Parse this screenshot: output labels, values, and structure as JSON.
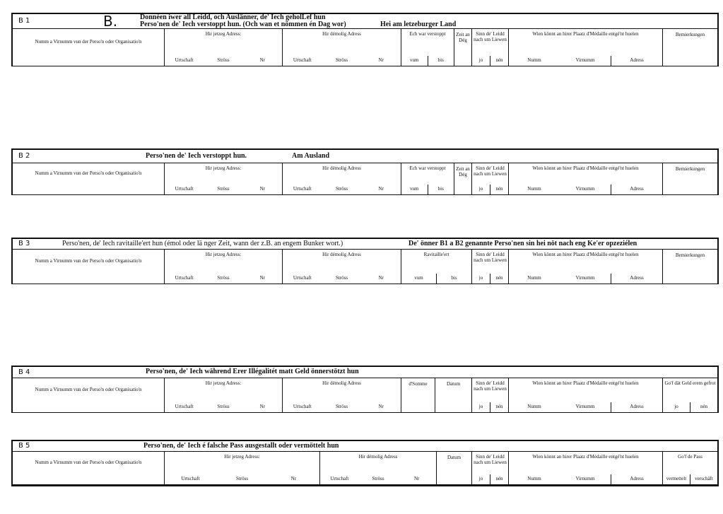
{
  "sections": [
    {
      "code": "B 1",
      "letter": "B.",
      "title": [
        "Donnéen iwer all Leidd, och Auslänner, de' Iech geholLef hun",
        "Perso'nen de' Iech verstoppt hun. (Och wan et nömmen én Dag wor)"
      ],
      "extra": "Hei am letzeburger Land",
      "columns": [
        {
          "label": "Numm a Virnumm vun der Perso'n oder Organisatio'n",
          "subs": []
        },
        {
          "label": "Hir jetzeg Adress:",
          "subs": [
            "Urtschaft",
            "Ströss",
            "Nr"
          ]
        },
        {
          "label": "Hir démolig Adress",
          "subs": [
            "Urtschaft",
            "Ströss",
            "Nr"
          ]
        },
        {
          "label": "Ech war verstoppt",
          "subs": [
            "vum",
            "bis"
          ]
        },
        {
          "label": "Zeit an Dég",
          "subs": []
        },
        {
          "label": "Sinn de' Leidd nach um Liewen",
          "subs": [
            "jo",
            "nén"
          ]
        },
        {
          "label": "Wien könnt an hirer Plaatz d'Médaille entgé'nt huelen",
          "subs": [
            "Numm",
            "Virnumm",
            "Adress"
          ]
        },
        {
          "label": "Bemierkungen",
          "subs": []
        }
      ]
    },
    {
      "code": "B 2",
      "title": [
        "Perso'nen de' Iech verstoppt hun."
      ],
      "extra": "Am Ausland",
      "columns": [
        {
          "label": "Numm a Virnumm vun der Perso'n oder Organisatio'n",
          "subs": []
        },
        {
          "label": "Hir jetzeg Adress:",
          "subs": [
            "Urtschaft",
            "Ströss",
            "Nr"
          ]
        },
        {
          "label": "Hir démolig Adress",
          "subs": [
            "Urtschaft",
            "Ströss",
            "Nr"
          ]
        },
        {
          "label": "Ech war verstoppt",
          "subs": [
            "vum",
            "bis"
          ]
        },
        {
          "label": "Zeit an Dég",
          "subs": []
        },
        {
          "label": "Sinn de' Leidd nach um Liewen",
          "subs": [
            "jo",
            "nén"
          ]
        },
        {
          "label": "Wien könnt an hirer Plaatz d'Médaille entgé'nt huelen",
          "subs": [
            "Numm",
            "Virnumm",
            "Adress"
          ]
        },
        {
          "label": "Bemierkungen",
          "subs": []
        }
      ]
    },
    {
      "code": "B 3",
      "title": [
        "Perso'nen, de' Iech ravitaille'ert hun (émol oder lä nger Zeit, wann der z.B. an engem Bunker wort.)"
      ],
      "extra": "De' önner B1 a B2 genannte Perso'nen sin hei nöt nach eng Ke'er opzeziélen",
      "columns": [
        {
          "label": "Numm a Virnumm vun der Perso'n oder Organisatio'n",
          "subs": []
        },
        {
          "label": "Hir jetzeg Adress:",
          "subs": [
            "Urtschaft",
            "Ströss",
            "Nr"
          ]
        },
        {
          "label": "Hir démolig Adress",
          "subs": [
            "Urtschaft",
            "Ströss",
            "Nr"
          ]
        },
        {
          "label": "Ravitaille'ert",
          "subs": [
            "vum",
            "bis"
          ]
        },
        {
          "label": "Sinn de' Leidd nach um Liewen",
          "subs": [
            "jo",
            "nén"
          ]
        },
        {
          "label": "Wien könnt an hirer Plaatz d'Médaille entgé'nt huelen",
          "subs": [
            "Numm",
            "Virnumm",
            "Adress"
          ]
        },
        {
          "label": "Bemierkungen",
          "subs": []
        }
      ]
    },
    {
      "code": "B 4",
      "title": [
        "Perso'nen, de' Iech während Erer Illégalitét matt Geld önnerstötzt hun"
      ],
      "extra": "",
      "columns": [
        {
          "label": "Numm a Virnumm vun der Perso'n oder Organisatio'n",
          "subs": []
        },
        {
          "label": "Hir jetzeg Adress:",
          "subs": [
            "Urtschaft",
            "Ströss",
            "Nr"
          ]
        },
        {
          "label": "Hir démolig Adress",
          "subs": [
            "Urtschaft",
            "Ströss",
            "Nr"
          ]
        },
        {
          "label": "d'Somme",
          "subs": []
        },
        {
          "label": "Datum",
          "subs": []
        },
        {
          "label": "Sinn de' Leidd nach um Liewen",
          "subs": [
            "jo",
            "nén"
          ]
        },
        {
          "label": "Wien könnt an hirer Plaatz d'Médaille entgé'nt huelen",
          "subs": [
            "Numm",
            "Virnumm",
            "Adress"
          ]
        },
        {
          "label": "Go'f dät Geld erem gefrot",
          "subs": [
            "jo",
            "nén"
          ]
        }
      ]
    },
    {
      "code": "B 5",
      "title": [
        "Perso'nen, de' Iech é falsche Pass ausgestallt oder vermöttelt hun"
      ],
      "extra": "",
      "columns": [
        {
          "label": "Numm a Virnumm vun der Perso'n oder Organisatio'n",
          "subs": []
        },
        {
          "label": "Hir jetzeg Adress:",
          "subs": [
            "Urtschaft",
            "Ströss",
            "Nr"
          ]
        },
        {
          "label": "Hir démolig Adress",
          "subs": [
            "Urtschaft",
            "Ströss",
            "Nr"
          ]
        },
        {
          "label": "Datum",
          "subs": []
        },
        {
          "label": "Sinn de' Leidd nach um Liewen",
          "subs": [
            "jo",
            "nén"
          ]
        },
        {
          "label": "Wien könnt an hirer Plaatz d'Médaille entgé'nt huelen",
          "subs": [
            "Numm",
            "Virnumm",
            "Adress"
          ]
        },
        {
          "label": "Go'f de Pass",
          "subs": [
            "vermettelt",
            "verschäft"
          ]
        }
      ]
    }
  ]
}
